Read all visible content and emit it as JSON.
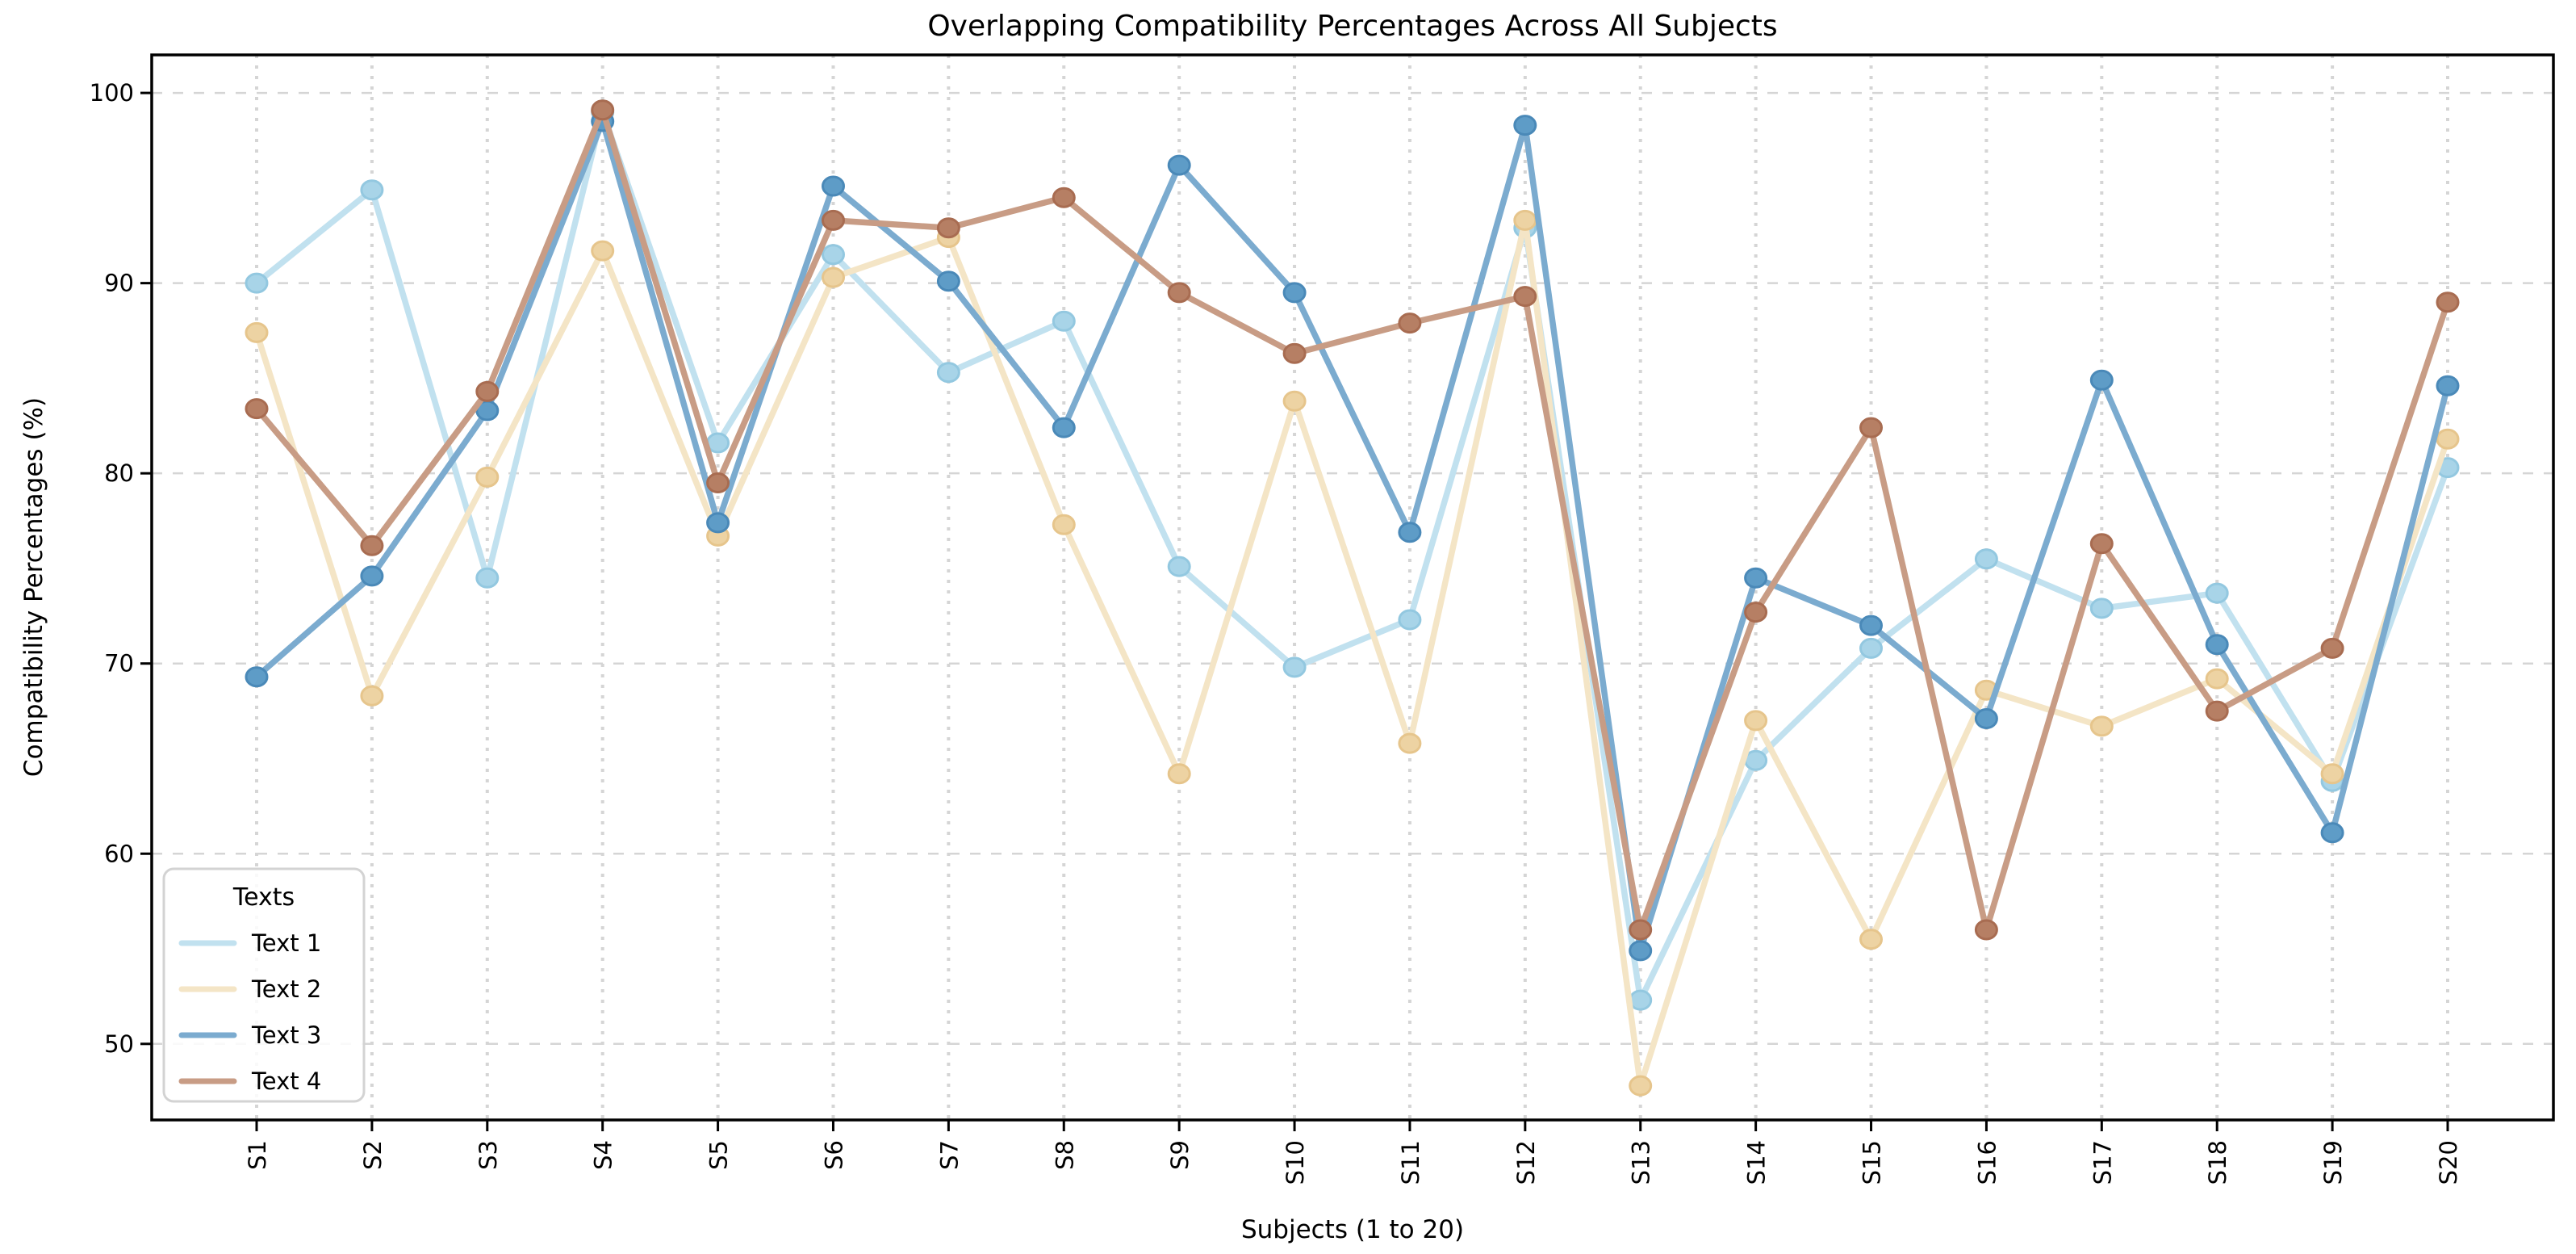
{
  "figure": {
    "title": "Overlapping Compatibility Percentages Across All Subjects",
    "xlabel": "Subjects (1 to 20)",
    "ylabel": "Compatibility Percentages (%)"
  },
  "legend": {
    "title": "Texts",
    "position": "lower left",
    "items": [
      {
        "label": "Text 1"
      },
      {
        "label": "Text 2"
      },
      {
        "label": "Text 3"
      },
      {
        "label": "Text 4"
      }
    ]
  },
  "chart_data": {
    "type": "line",
    "title": "Overlapping Compatibility Percentages Across All Subjects",
    "xlabel": "Subjects (1 to 20)",
    "ylabel": "Compatibility Percentages (%)",
    "categories": [
      "S1",
      "S2",
      "S3",
      "S4",
      "S5",
      "S6",
      "S7",
      "S8",
      "S9",
      "S10",
      "S11",
      "S12",
      "S13",
      "S14",
      "S15",
      "S16",
      "S17",
      "S18",
      "S19",
      "S20"
    ],
    "yticks": [
      50,
      60,
      70,
      80,
      90,
      100
    ],
    "ylim": [
      46,
      102
    ],
    "grid": true,
    "legend_position": "lower left",
    "series": [
      {
        "name": "Text 1",
        "line_color": "#C1E1EF",
        "marker_color": "#A8D4E8",
        "marker_edge": "#93C8E0",
        "values": [
          90.0,
          94.9,
          74.5,
          99.0,
          81.6,
          91.5,
          85.3,
          88.0,
          75.1,
          69.8,
          72.3,
          92.9,
          52.3,
          64.9,
          70.8,
          75.5,
          72.9,
          73.7,
          63.8,
          80.3
        ]
      },
      {
        "name": "Text 2",
        "line_color": "#F4E5C6",
        "marker_color": "#EDD3A3",
        "marker_edge": "#E6C58C",
        "values": [
          87.4,
          68.3,
          79.8,
          91.7,
          76.7,
          90.3,
          92.4,
          77.3,
          64.2,
          83.8,
          65.8,
          93.3,
          47.8,
          67.0,
          55.5,
          68.6,
          66.7,
          69.2,
          64.2,
          81.8
        ]
      },
      {
        "name": "Text 3",
        "line_color": "#7BABCF",
        "marker_color": "#5E9CC7",
        "marker_edge": "#4A89B8",
        "values": [
          69.3,
          74.6,
          83.3,
          98.5,
          77.4,
          95.1,
          90.1,
          82.4,
          96.2,
          89.5,
          76.9,
          98.3,
          54.9,
          74.5,
          72.0,
          67.1,
          84.9,
          71.0,
          61.1,
          84.6
        ]
      },
      {
        "name": "Text 4",
        "line_color": "#C89C85",
        "marker_color": "#B67F64",
        "marker_edge": "#A86C51",
        "values": [
          83.4,
          76.2,
          84.3,
          99.1,
          79.5,
          93.3,
          92.9,
          94.5,
          89.5,
          86.3,
          87.9,
          89.3,
          56.0,
          72.7,
          82.4,
          56.0,
          76.3,
          67.5,
          70.8,
          89.0
        ]
      }
    ],
    "style": {
      "grid_color": "#d5d5d5",
      "spine_color": "#000000",
      "background": "#ffffff"
    }
  }
}
